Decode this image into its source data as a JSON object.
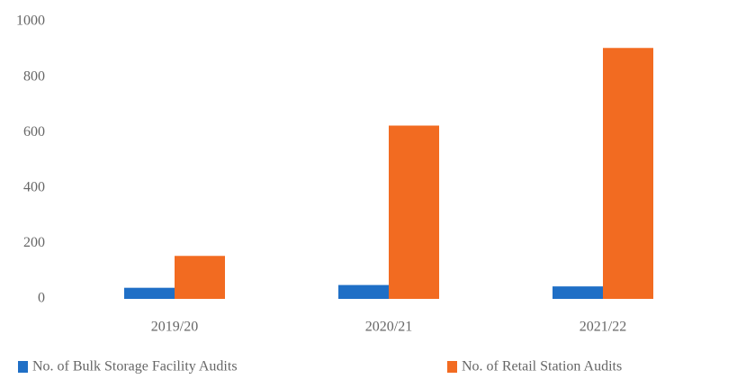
{
  "chart_data": {
    "type": "bar",
    "categories": [
      "2019/20",
      "2020/21",
      "2021/22"
    ],
    "series": [
      {
        "name": "No. of Bulk Storage Facility Audits",
        "color": "#1f6fc6",
        "values": [
          40,
          50,
          45
        ]
      },
      {
        "name": "No. of Retail Station Audits",
        "color": "#f26b21",
        "values": [
          155,
          625,
          905
        ]
      }
    ],
    "ylim": [
      0,
      1000
    ],
    "yticks": [
      0,
      200,
      400,
      600,
      800,
      1000
    ],
    "grid": false,
    "legend": "bottom"
  }
}
